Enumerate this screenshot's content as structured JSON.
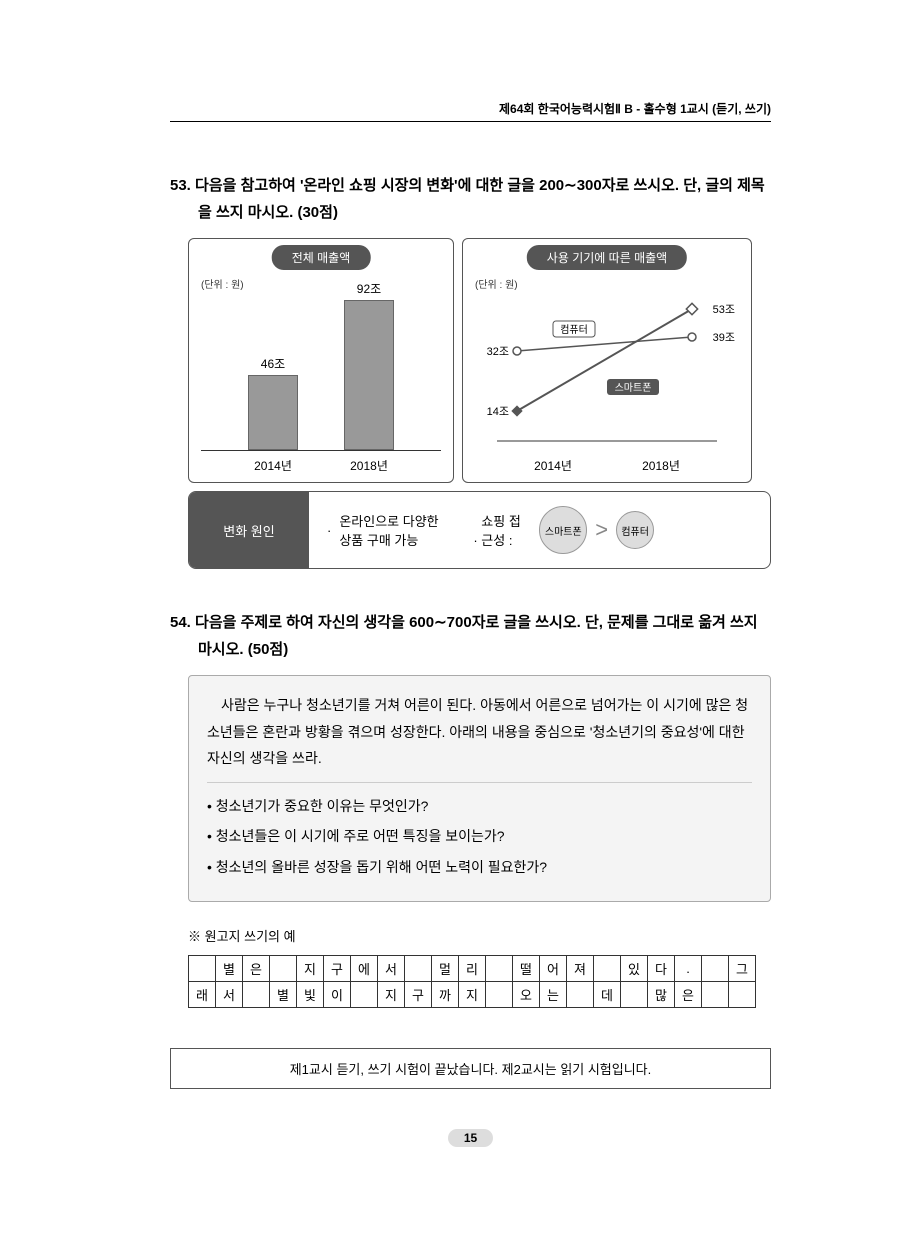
{
  "header": "제64회  한국어능력시험Ⅱ B - 홀수형 1교시 (듣기, 쓰기)",
  "q53": {
    "num": "53.",
    "text": "다음을 참고하여 '온라인 쇼핑 시장의 변화'에 대한 글을 200∼300자로 쓰시오. 단, 글의 제목을 쓰지 마시오. (30점)",
    "bar": {
      "title": "전체 매출액",
      "unit": "(단위 : 원)",
      "cats": [
        "2014년",
        "2018년"
      ],
      "vals": [
        "46조",
        "92조"
      ],
      "heights": [
        75,
        150
      ],
      "bar_color": "#999999"
    },
    "line": {
      "title": "사용 기기에 따른 매출액",
      "unit": "(단위 : 원)",
      "xcats": [
        "2014년",
        "2018년"
      ],
      "s1_label": "컴퓨터",
      "s1_start": "32조",
      "s1_end": "39조",
      "s2_label": "스마트폰",
      "s2_start": "14조",
      "s2_end": "53조"
    },
    "cause": {
      "label": "변화 원인",
      "item1": "온라인으로 다양한 상품 구매 가능",
      "item2_label": "쇼핑 접근성 :",
      "big": "스마트폰",
      "small": "컴퓨터"
    }
  },
  "q54": {
    "num": "54.",
    "text": "다음을 주제로 하여 자신의 생각을 600∼700자로 글을 쓰시오. 단, 문제를 그대로 옮겨 쓰지 마시오. (50점)",
    "intro": "사람은 누구나 청소년기를 거쳐 어른이 된다. 아동에서 어른으로 넘어가는 이 시기에 많은 청소년들은 혼란과 방황을 겪으며 성장한다. 아래의 내용을 중심으로 '청소년기의 중요성'에 대한 자신의 생각을 쓰라.",
    "bullets": [
      "청소년기가 중요한 이유는 무엇인가?",
      "청소년들은 이 시기에 주로 어떤 특징을 보이는가?",
      "청소년의 올바른 성장을 돕기 위해 어떤 노력이 필요한가?"
    ]
  },
  "note": "※ 원고지 쓰기의 예",
  "grid": {
    "r1": [
      "",
      "별",
      "은",
      "",
      "지",
      "구",
      "에",
      "서",
      "",
      "멀",
      "리",
      "",
      "떨",
      "어",
      "져",
      "",
      "있",
      "다",
      ".",
      "",
      "그"
    ],
    "r2": [
      "래",
      "서",
      "",
      "별",
      "빛",
      "이",
      "",
      "지",
      "구",
      "까",
      "지",
      "",
      "오",
      "는",
      "",
      "데",
      "",
      "많",
      "은",
      "",
      ""
    ]
  },
  "footer": "제1교시 듣기, 쓰기 시험이 끝났습니다. 제2교시는 읽기 시험입니다.",
  "page": "15"
}
